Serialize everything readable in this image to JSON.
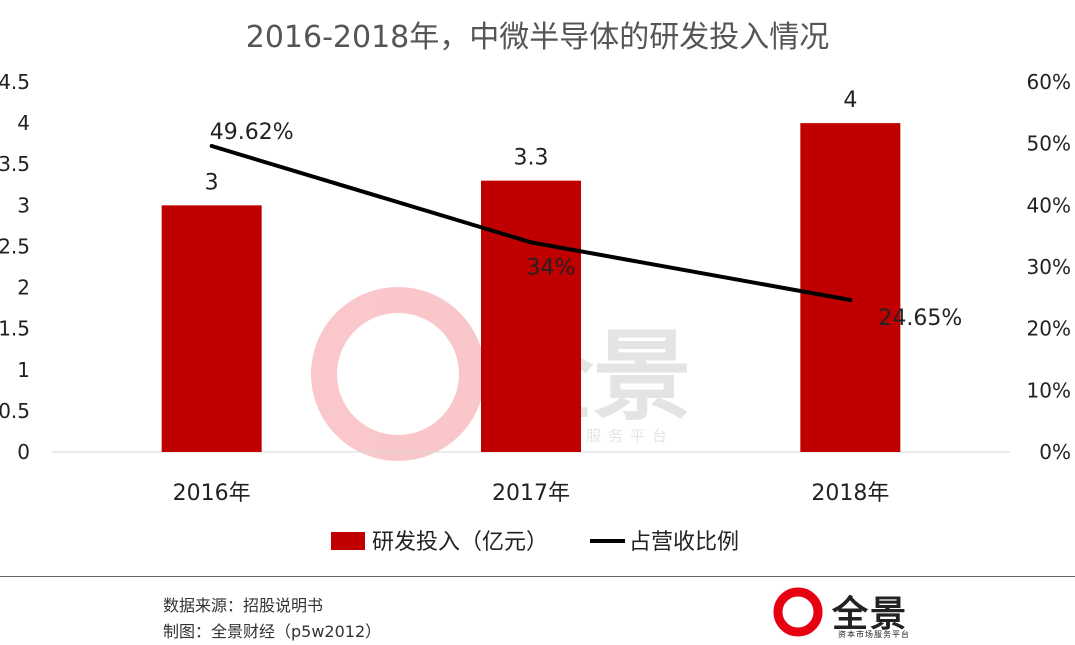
{
  "chart_data": {
    "type": "bar+line",
    "title": "2016-2018年，中微半导体的研发投入情况",
    "categories": [
      "2016年",
      "2017年",
      "2018年"
    ],
    "series": [
      {
        "name": "研发投入（亿元）",
        "type": "bar",
        "axis": "left",
        "color": "#C00000",
        "values": [
          3,
          3.3,
          4
        ],
        "labels": [
          "3",
          "3.3",
          "4"
        ]
      },
      {
        "name": "占营收比例",
        "type": "line",
        "axis": "right",
        "color": "#000000",
        "values": [
          49.62,
          34,
          24.65
        ],
        "labels": [
          "49.62%",
          "34%",
          "24.65%"
        ]
      }
    ],
    "y_left": {
      "min": 0,
      "max": 4.5,
      "ticks": [
        "0",
        "0.5",
        "1",
        "1.5",
        "2",
        "2.5",
        "3",
        "3.5",
        "4",
        "4.5"
      ]
    },
    "y_right": {
      "min": 0,
      "max": 60,
      "ticks": [
        "0%",
        "10%",
        "20%",
        "30%",
        "40%",
        "50%",
        "60%"
      ]
    },
    "legend_position": "bottom"
  },
  "watermark": {
    "brand": "全景",
    "subtitle": "资本市场服务平台"
  },
  "footer": {
    "source": "数据来源：招股说明书",
    "credit": "制图：全景财经（p5w2012）",
    "brand": "全景",
    "brand_sub": "资本市场服务平台",
    "brand_color": "#E60012"
  }
}
